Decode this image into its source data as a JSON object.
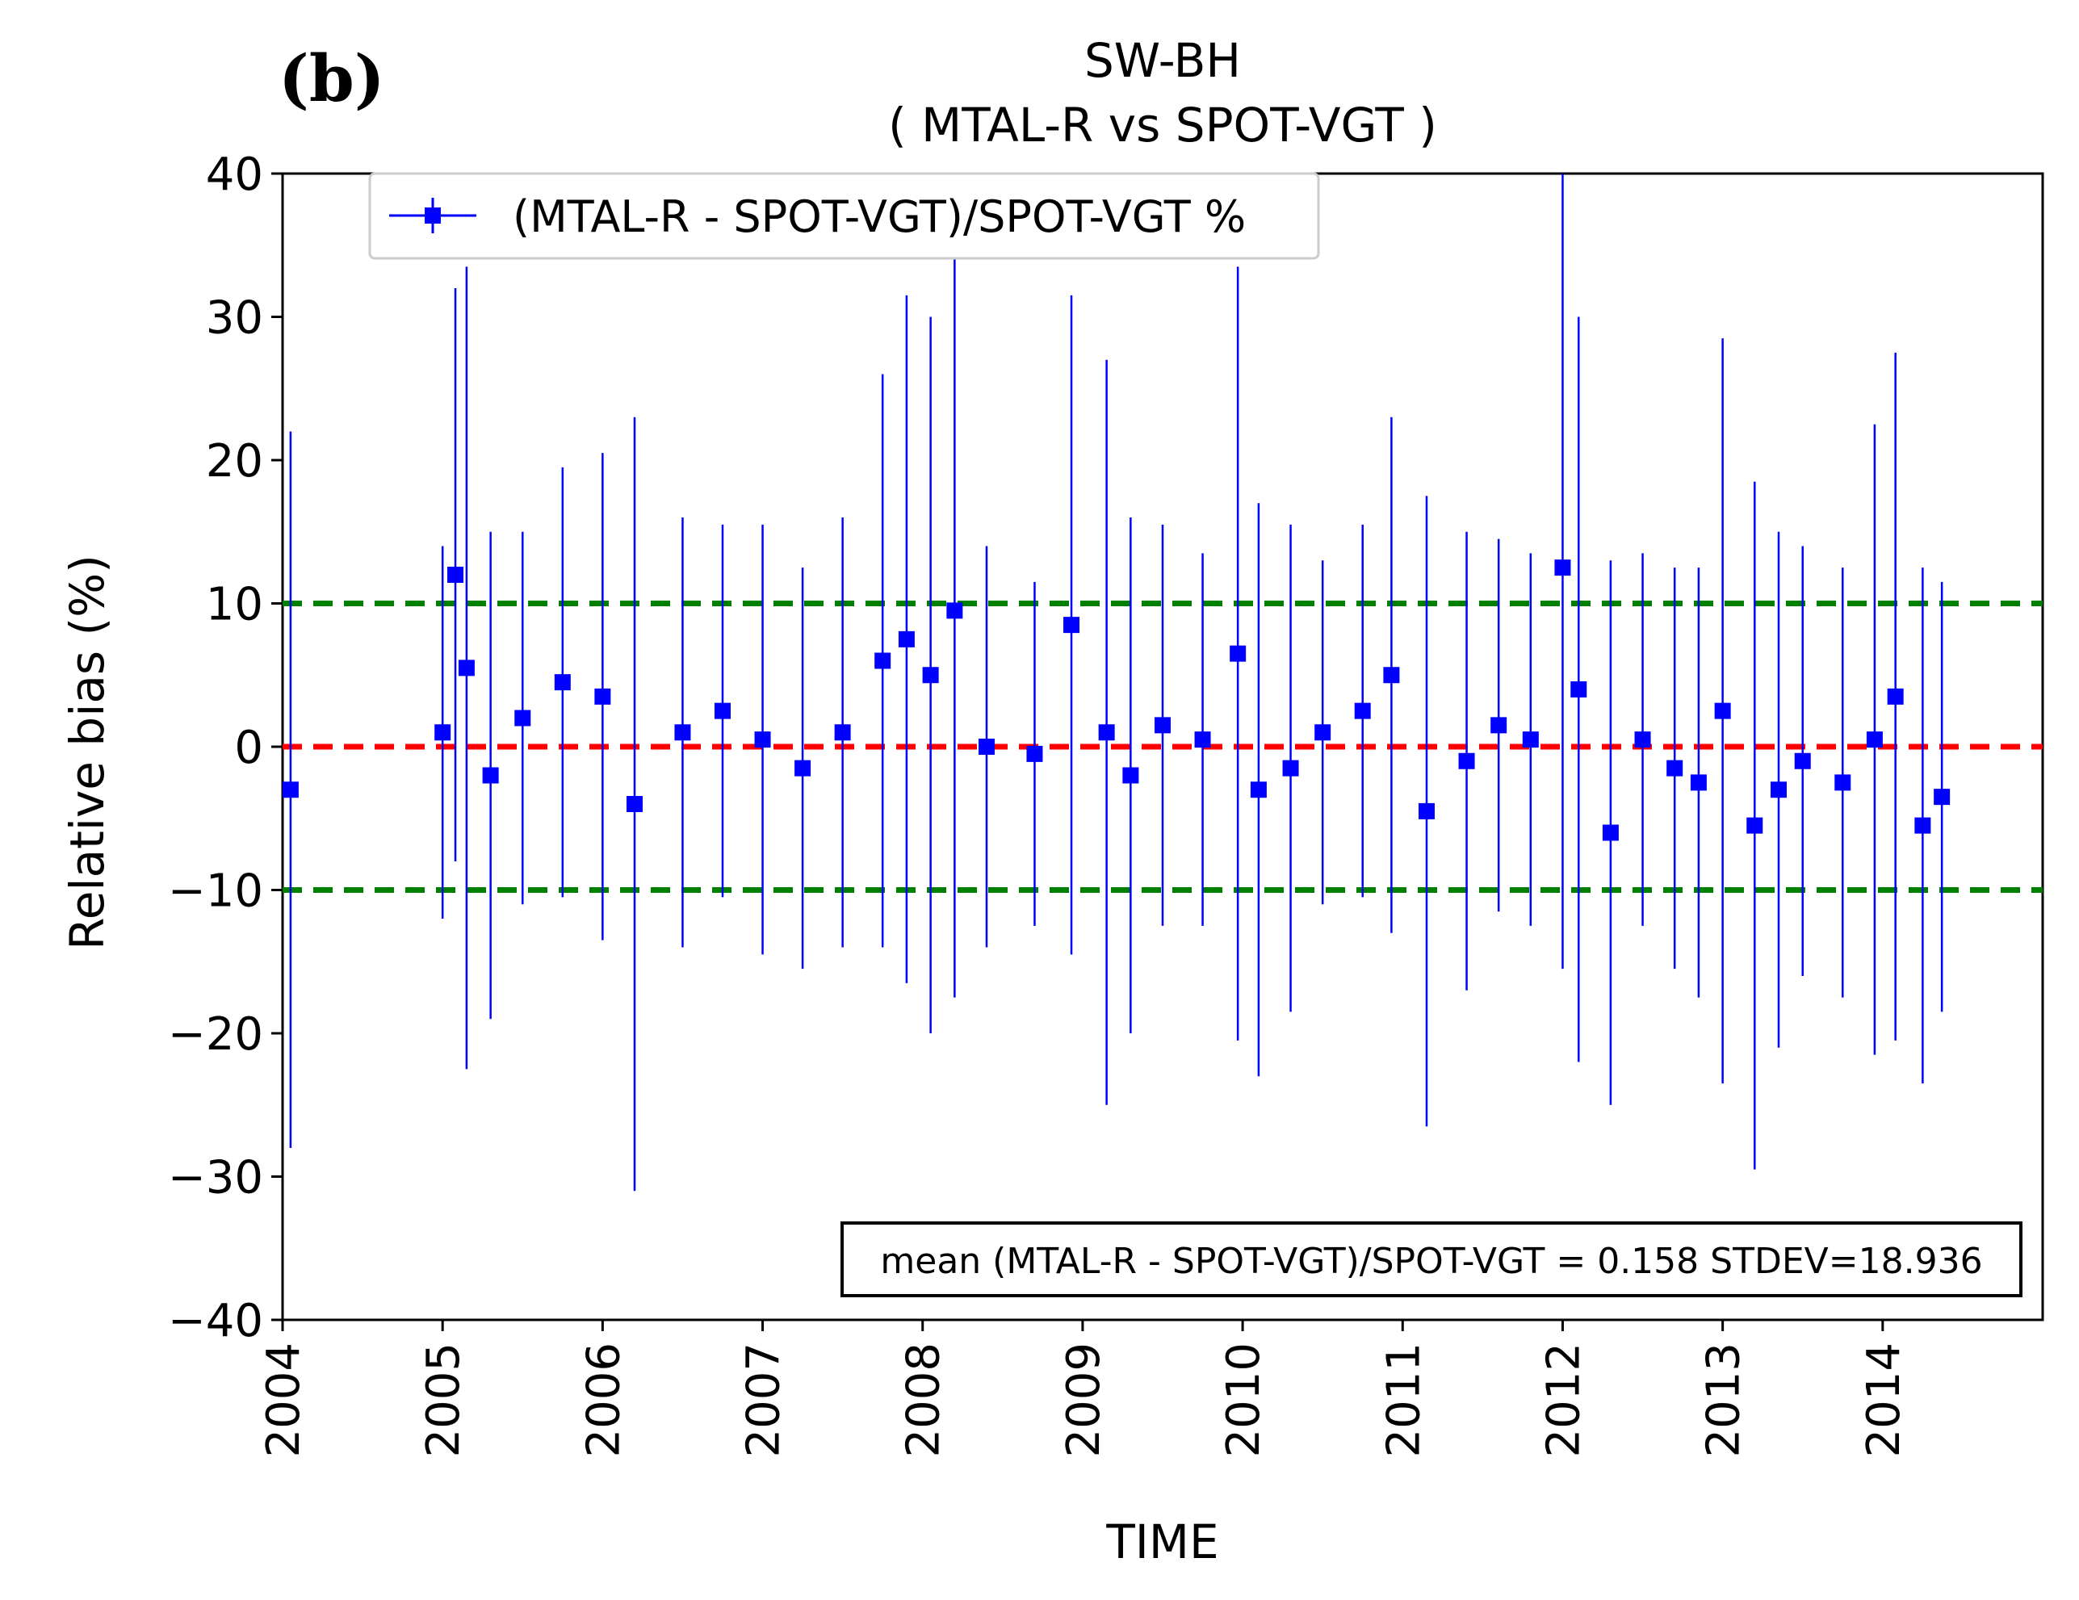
{
  "panel_label": "(b)",
  "chart_data": {
    "type": "line",
    "title": "SW-BH",
    "subtitle": "( MTAL-R vs SPOT-VGT )",
    "xlabel": "TIME",
    "ylabel": "Relative bias (%)",
    "xlim": [
      2004.0,
      2015.0
    ],
    "ylim": [
      -40,
      40
    ],
    "x_ticks": [
      "2004",
      "2005",
      "2006",
      "2007",
      "2008",
      "2009",
      "2010",
      "2011",
      "2012",
      "2013",
      "2014"
    ],
    "y_ticks": [
      "40",
      "30",
      "20",
      "10",
      "0",
      "−10",
      "−20",
      "−30",
      "−40"
    ],
    "legend": "(MTAL-R - SPOT-VGT)/SPOT-VGT %",
    "legend_position": "top-left",
    "annotation": "mean (MTAL-R - SPOT-VGT)/SPOT-VGT = 0.158  STDEV=18.936",
    "reference_lines": [
      {
        "y": 10,
        "style": "dashed",
        "color": "#008000"
      },
      {
        "y": 0,
        "style": "dashed",
        "color": "#ff0000"
      },
      {
        "y": -10,
        "style": "dashed",
        "color": "#008000"
      }
    ],
    "series": [
      {
        "name": "(MTAL-R - SPOT-VGT)/SPOT-VGT %",
        "color": "#0000ff",
        "x": [
          2004.05,
          2005.0,
          2005.08,
          2005.15,
          2005.3,
          2005.5,
          2005.75,
          2006.0,
          2006.2,
          2006.5,
          2006.75,
          2007.0,
          2007.25,
          2007.5,
          2007.75,
          2007.9,
          2008.05,
          2008.2,
          2008.4,
          2008.7,
          2008.93,
          2009.15,
          2009.3,
          2009.5,
          2009.75,
          2009.97,
          2010.1,
          2010.3,
          2010.5,
          2010.75,
          2010.93,
          2011.15,
          2011.4,
          2011.6,
          2011.8,
          2012.0,
          2012.1,
          2012.3,
          2012.5,
          2012.7,
          2012.85,
          2013.0,
          2013.2,
          2013.35,
          2013.5,
          2013.75,
          2013.95,
          2014.08,
          2014.25,
          2014.37
        ],
        "y": [
          -3.0,
          1.0,
          12.0,
          5.5,
          -2.0,
          2.0,
          4.5,
          3.5,
          -4.0,
          1.0,
          2.5,
          0.5,
          -1.5,
          1.0,
          6.0,
          7.5,
          5.0,
          9.5,
          0.0,
          -0.5,
          8.5,
          1.0,
          -2.0,
          1.5,
          0.5,
          6.5,
          -3.0,
          -1.5,
          1.0,
          2.5,
          5.0,
          -4.5,
          -1.0,
          1.5,
          0.5,
          12.5,
          4.0,
          -6.0,
          0.5,
          -1.5,
          -2.5,
          2.5,
          -5.5,
          -3.0,
          -1.0,
          -2.5,
          0.5,
          3.5,
          -5.5,
          -3.5
        ],
        "err": [
          25.0,
          13.0,
          20.0,
          28.0,
          17.0,
          13.0,
          15.0,
          17.0,
          27.0,
          15.0,
          13.0,
          15.0,
          14.0,
          15.0,
          20.0,
          24.0,
          25.0,
          27.0,
          14.0,
          12.0,
          23.0,
          26.0,
          18.0,
          14.0,
          13.0,
          27.0,
          20.0,
          17.0,
          12.0,
          13.0,
          18.0,
          22.0,
          16.0,
          13.0,
          13.0,
          28.0,
          26.0,
          19.0,
          13.0,
          14.0,
          15.0,
          26.0,
          24.0,
          18.0,
          15.0,
          15.0,
          22.0,
          24.0,
          18.0,
          15.0
        ]
      }
    ]
  }
}
